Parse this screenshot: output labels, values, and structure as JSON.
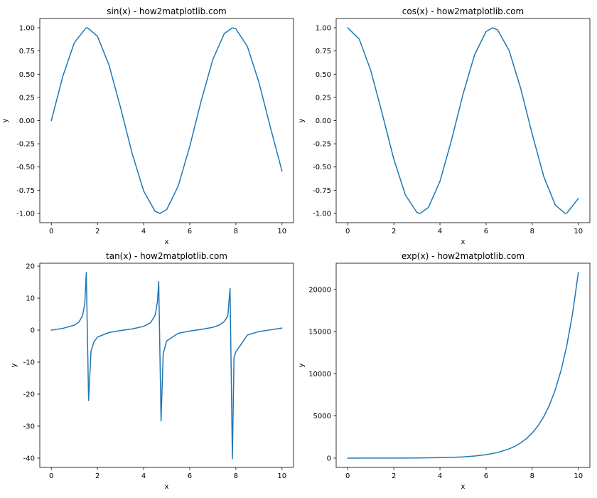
{
  "chart_data": [
    {
      "type": "line",
      "title": "sin(x) - how2matplotlib.com",
      "xlabel": "x",
      "ylabel": "y",
      "xlim": [
        -0.5,
        10.5
      ],
      "ylim": [
        -1.1,
        1.1
      ],
      "xticks": [
        0,
        2,
        4,
        6,
        8,
        10
      ],
      "xtick_labels": [
        "0",
        "2",
        "4",
        "6",
        "8",
        "10"
      ],
      "yticks": [
        -1.0,
        -0.75,
        -0.5,
        -0.25,
        0.0,
        0.25,
        0.5,
        0.75,
        1.0
      ],
      "ytick_labels": [
        "-1.00",
        "-0.75",
        "-0.50",
        "-0.25",
        "0.00",
        "0.25",
        "0.50",
        "0.75",
        "1.00"
      ],
      "grid": false,
      "color": "#1f77b4",
      "series": [
        {
          "x": [
            0,
            0.5,
            1,
            1.5,
            1.571,
            2,
            2.5,
            3,
            3.5,
            4,
            4.5,
            4.712,
            5,
            5.5,
            6,
            6.5,
            7,
            7.5,
            7.854,
            8,
            8.5,
            9,
            9.5,
            10
          ],
          "y": [
            0,
            0.479,
            0.841,
            0.997,
            1.0,
            0.909,
            0.598,
            0.141,
            -0.351,
            -0.757,
            -0.978,
            -1.0,
            -0.959,
            -0.706,
            -0.279,
            0.215,
            0.657,
            0.938,
            1.0,
            0.989,
            0.798,
            0.412,
            -0.075,
            -0.544
          ]
        }
      ]
    },
    {
      "type": "line",
      "title": "cos(x) - how2matplotlib.com",
      "xlabel": "x",
      "ylabel": "y",
      "xlim": [
        -0.5,
        10.5
      ],
      "ylim": [
        -1.1,
        1.1
      ],
      "xticks": [
        0,
        2,
        4,
        6,
        8,
        10
      ],
      "xtick_labels": [
        "0",
        "2",
        "4",
        "6",
        "8",
        "10"
      ],
      "yticks": [
        -1.0,
        -0.75,
        -0.5,
        -0.25,
        0.0,
        0.25,
        0.5,
        0.75,
        1.0
      ],
      "ytick_labels": [
        "-1.00",
        "-0.75",
        "-0.50",
        "-0.25",
        "0.00",
        "0.25",
        "0.50",
        "0.75",
        "1.00"
      ],
      "grid": false,
      "color": "#1f77b4",
      "series": [
        {
          "x": [
            0,
            0.5,
            1,
            1.5,
            2,
            2.5,
            3,
            3.142,
            3.5,
            4,
            4.5,
            5,
            5.5,
            6,
            6.283,
            6.5,
            7,
            7.5,
            8,
            8.5,
            9,
            9.425,
            9.5,
            10
          ],
          "y": [
            1.0,
            0.878,
            0.54,
            0.071,
            -0.416,
            -0.801,
            -0.99,
            -1.0,
            -0.936,
            -0.654,
            -0.211,
            0.284,
            0.709,
            0.96,
            1.0,
            0.977,
            0.754,
            0.347,
            -0.146,
            -0.602,
            -0.911,
            -1.0,
            -0.997,
            -0.839
          ]
        }
      ]
    },
    {
      "type": "line",
      "title": "tan(x) - how2matplotlib.com",
      "xlabel": "x",
      "ylabel": "y",
      "xlim": [
        -0.5,
        10.5
      ],
      "ylim": [
        -42.9,
        20.9
      ],
      "xticks": [
        0,
        2,
        4,
        6,
        8,
        10
      ],
      "xtick_labels": [
        "0",
        "2",
        "4",
        "6",
        "8",
        "10"
      ],
      "yticks": [
        -40,
        -30,
        -20,
        -10,
        0,
        10,
        20
      ],
      "ytick_labels": [
        "-40",
        "-30",
        "-20",
        "-10",
        "0",
        "10",
        "20"
      ],
      "grid": false,
      "color": "#1f77b4",
      "series": [
        {
          "x": [
            0,
            0.5,
            1,
            1.2,
            1.35,
            1.45,
            1.515,
            1.616,
            1.72,
            1.85,
            2,
            2.5,
            3,
            3.5,
            4,
            4.3,
            4.5,
            4.6,
            4.655,
            4.757,
            4.85,
            5,
            5.5,
            6,
            6.5,
            7,
            7.3,
            7.5,
            7.65,
            7.748,
            7.849,
            7.92,
            8,
            8.5,
            9,
            9.5,
            10
          ],
          "y": [
            0,
            0.546,
            1.557,
            2.572,
            4.455,
            8.238,
            18.0,
            -22.0,
            -6.58,
            -3.63,
            -2.185,
            -0.747,
            -0.143,
            0.375,
            1.158,
            2.287,
            4.637,
            8.86,
            15.2,
            -28.4,
            -7.4,
            -3.381,
            -0.996,
            -0.291,
            0.22,
            0.871,
            1.646,
            2.706,
            4.412,
            13.0,
            -40.2,
            -8.45,
            -6.8,
            -1.527,
            -0.452,
            0.075,
            0.648
          ]
        }
      ]
    },
    {
      "type": "line",
      "title": "exp(x) - how2matplotlib.com",
      "xlabel": "x",
      "ylabel": "y",
      "xlim": [
        -0.5,
        10.5
      ],
      "ylim": [
        -1100,
        23100
      ],
      "xticks": [
        0,
        2,
        4,
        6,
        8,
        10
      ],
      "xtick_labels": [
        "0",
        "2",
        "4",
        "6",
        "8",
        "10"
      ],
      "yticks": [
        0,
        5000,
        10000,
        15000,
        20000
      ],
      "ytick_labels": [
        "0",
        "5000",
        "10000",
        "15000",
        "20000"
      ],
      "grid": false,
      "color": "#1f77b4",
      "series": [
        {
          "x": [
            0,
            1,
            2,
            3,
            4,
            4.5,
            5,
            5.5,
            6,
            6.5,
            7,
            7.25,
            7.5,
            7.75,
            8,
            8.25,
            8.5,
            8.75,
            9,
            9.25,
            9.5,
            9.75,
            10
          ],
          "y": [
            1,
            2.7,
            7.4,
            20.1,
            54.6,
            90.0,
            148.4,
            244.7,
            403.4,
            665.1,
            1096.6,
            1408.1,
            1808.0,
            2321.6,
            2981.0,
            3827.6,
            4914.8,
            6310.7,
            8103.1,
            10404.6,
            13359.7,
            17154.2,
            22026.5
          ]
        }
      ]
    }
  ]
}
